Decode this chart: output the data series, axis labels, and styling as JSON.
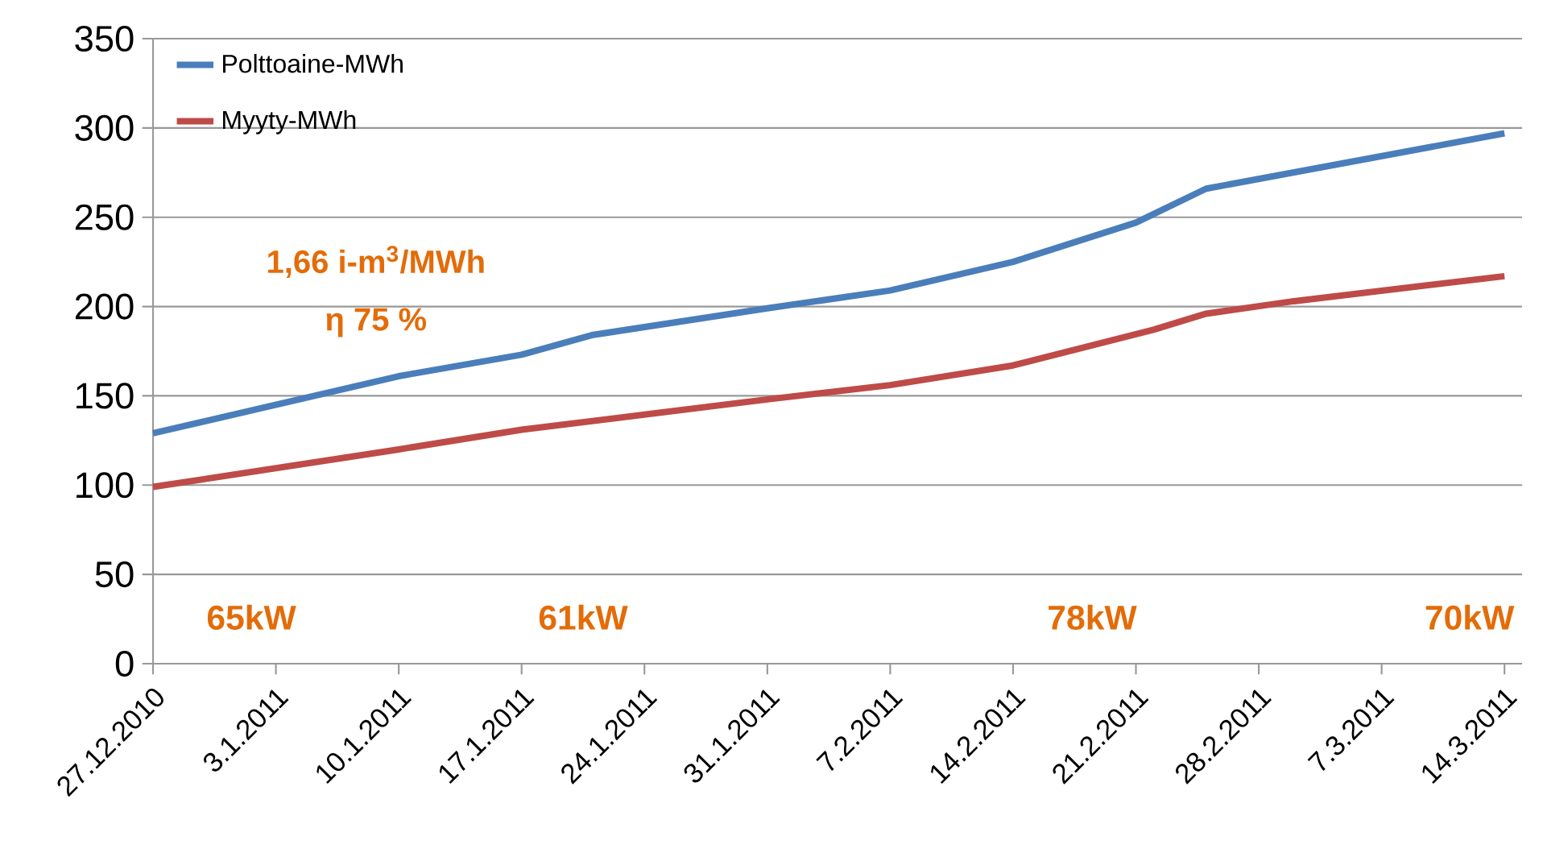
{
  "chart_data": {
    "type": "line",
    "series": [
      {
        "name": "Polttoaine-MWh",
        "color": "#4a7ebb",
        "x": [
          "2010-12-27",
          "2011-01-10",
          "2011-01-17",
          "2011-01-21",
          "2011-01-31",
          "2011-02-07",
          "2011-02-14",
          "2011-02-21",
          "2011-02-25",
          "2011-03-14"
        ],
        "values": [
          129,
          161,
          173,
          184,
          199,
          209,
          225,
          247,
          266,
          297
        ]
      },
      {
        "name": "Myyty-MWh",
        "color": "#be4b48",
        "x": [
          "2010-12-27",
          "2011-01-10",
          "2011-01-17",
          "2011-01-31",
          "2011-02-07",
          "2011-02-14",
          "2011-02-22",
          "2011-02-25",
          "2011-03-02",
          "2011-03-14"
        ],
        "values": [
          99,
          120,
          131,
          148,
          156,
          167,
          187,
          196,
          203,
          217
        ]
      }
    ],
    "xlim": [
      "2010-12-27",
      "2011-03-15"
    ],
    "xticks": [
      {
        "value": "2010-12-27",
        "label": "27.12.2010"
      },
      {
        "value": "2011-01-03",
        "label": "3.1.2011"
      },
      {
        "value": "2011-01-10",
        "label": "10.1.2011"
      },
      {
        "value": "2011-01-17",
        "label": "17.1.2011"
      },
      {
        "value": "2011-01-24",
        "label": "24.1.2011"
      },
      {
        "value": "2011-01-31",
        "label": "31.1.2011"
      },
      {
        "value": "2011-02-07",
        "label": "7.2.2011"
      },
      {
        "value": "2011-02-14",
        "label": "14.2.2011"
      },
      {
        "value": "2011-02-21",
        "label": "21.2.2011"
      },
      {
        "value": "2011-02-28",
        "label": "28.2.2011"
      },
      {
        "value": "2011-03-07",
        "label": "7.3.2011"
      },
      {
        "value": "2011-03-14",
        "label": "14.3.2011"
      }
    ],
    "ylim": [
      0,
      350
    ],
    "yticks": [
      0,
      50,
      100,
      150,
      200,
      250,
      300,
      350
    ],
    "grid": "y",
    "legend": "top left",
    "marker": "none",
    "line_style": "solid",
    "annotations": [
      "1,66 i-m$^{3}$/MWh",
      "η 75 %",
      "65kW",
      "61kW",
      "78kW",
      "70kW"
    ]
  }
}
